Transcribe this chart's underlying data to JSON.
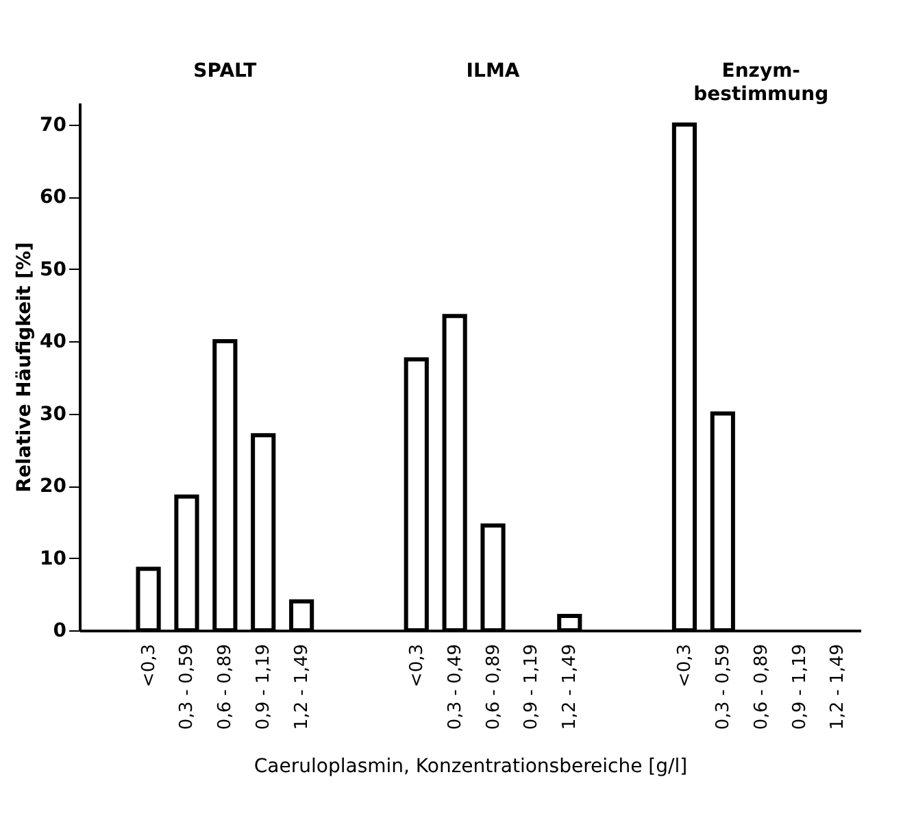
{
  "chart_data": {
    "type": "bar",
    "xlabel": "Caeruloplasmin, Konzentrationsbereiche [g/l]",
    "ylabel": "Relative Häufigkeit [%]",
    "categories": [
      "<0,3",
      "0,3 - 0,59",
      "0,6 - 0,89",
      "0,9 - 1,19",
      "1,2 - 1,49",
      "<0,3",
      "0,3 - 0,49",
      "0,6 - 0,89",
      "0,9 - 1,19",
      "1,2 - 1,49",
      "<0,3",
      "0,3 - 0,59",
      "0,6 - 0,89",
      "0,9 - 1,19",
      "1,2 - 1,49"
    ],
    "values": [
      8.5,
      18.5,
      40,
      27,
      4,
      37.5,
      43.5,
      14.5,
      null,
      2,
      70,
      30,
      null,
      null,
      null
    ],
    "color": "#ffffff",
    "annotations": [
      "SPALT",
      "ILMA",
      "Enzym- bestimmung"
    ],
    "ylim": [
      0,
      73
    ],
    "yticks": [
      0,
      10,
      20,
      30,
      40,
      50,
      60,
      70
    ],
    "grid": false
  }
}
